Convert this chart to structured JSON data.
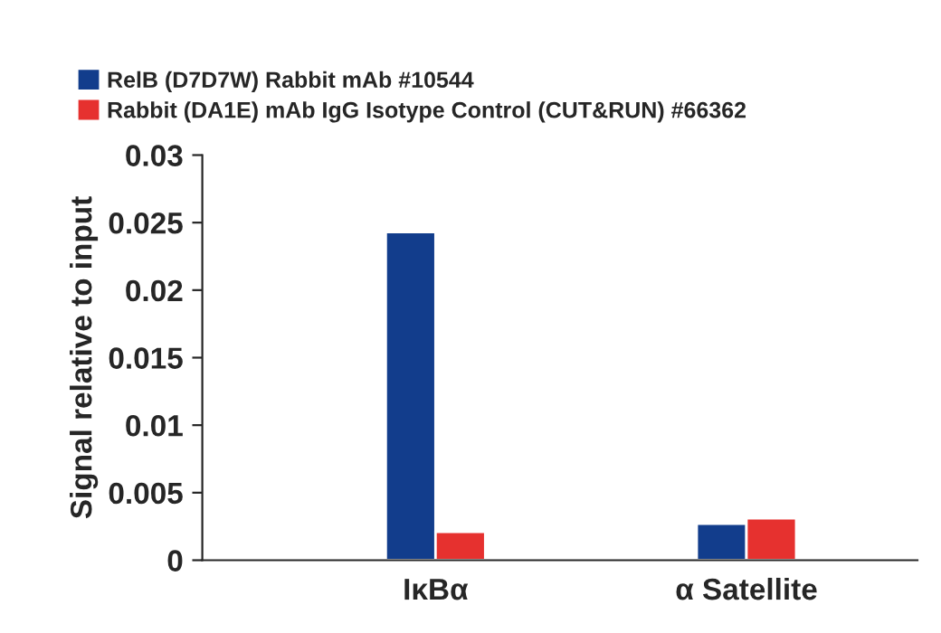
{
  "chart_data": {
    "type": "bar",
    "ylabel": "Signal relative to input",
    "categories": [
      "IκBα",
      "α Satellite"
    ],
    "series": [
      {
        "name": "RelB (D7D7W) Rabbit mAb #10544",
        "color": "#123d8c",
        "values": [
          0.0243,
          0.0027
        ]
      },
      {
        "name": "Rabbit (DA1E) mAb IgG Isotype Control (CUT&RUN) #66362",
        "color": "#e6312f",
        "values": [
          0.0021,
          0.0031
        ]
      }
    ],
    "ylim": [
      0,
      0.03
    ],
    "yticks": [
      0,
      0.005,
      0.01,
      0.015,
      0.02,
      0.025,
      0.03
    ],
    "grid": false,
    "legend": "top left"
  }
}
